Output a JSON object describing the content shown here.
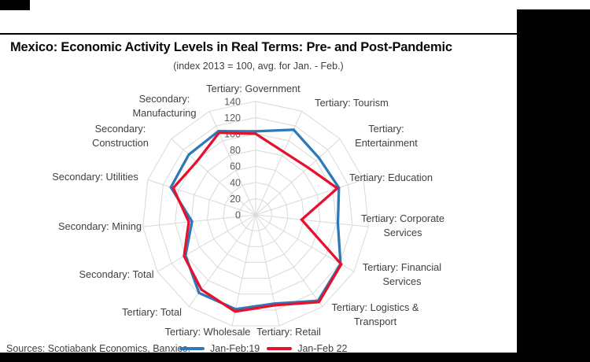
{
  "header": {
    "title": "Mexico: Economic Activity Levels in Real Terms: Pre- and Post-Pandemic",
    "subtitle": "(index 2013 = 100, avg. for Jan. - Feb.)"
  },
  "footer": {
    "sources": "Sources: Scotiabank Economics, Banxico."
  },
  "legend": {
    "items": [
      {
        "label": "Jan-Feb:19",
        "color": "#2E79B9"
      },
      {
        "label": "Jan-Feb 22",
        "color": "#E8112D"
      }
    ]
  },
  "colors": {
    "series_pre": "#2E79B9",
    "series_post": "#E8112D",
    "grid": "#D9D9D9",
    "tick_text": "#595959",
    "label_text": "#404040"
  },
  "chart_data": {
    "type": "radar",
    "title": "Mexico: Economic Activity Levels in Real Terms: Pre- and Post-Pandemic",
    "subtitle": "(index 2013 = 100, avg. for Jan. - Feb.)",
    "axis": {
      "min": 0,
      "max": 140,
      "step": 20,
      "tick_labels": [
        "0",
        "20",
        "40",
        "60",
        "80",
        "100",
        "120",
        "140"
      ]
    },
    "grid": true,
    "legend_position": "bottom",
    "categories": [
      {
        "label": "Tertiary: Government",
        "lines": [
          "Tertiary: Government"
        ]
      },
      {
        "label": "Tertiary: Tourism",
        "lines": [
          "Tertiary: Tourism"
        ]
      },
      {
        "label": "Tertiary: Entertainment",
        "lines": [
          "Tertiary:",
          "Entertainment"
        ]
      },
      {
        "label": "Tertiary: Education",
        "lines": [
          "Tertiary: Education"
        ]
      },
      {
        "label": "Tertiary: Corporate Services",
        "lines": [
          "Tertiary: Corporate",
          "Services"
        ]
      },
      {
        "label": "Tertiary: Financial Services",
        "lines": [
          "Tertiary: Financial",
          "Services"
        ]
      },
      {
        "label": "Tertiary: Logistics & Transport",
        "lines": [
          "Tertiary: Logistics &",
          "Transport"
        ]
      },
      {
        "label": "Tertiary: Retail",
        "lines": [
          "Tertiary: Retail"
        ]
      },
      {
        "label": "Tertiary: Wholesale",
        "lines": [
          "Tertiary: Wholesale"
        ]
      },
      {
        "label": "Tertiary: Total",
        "lines": [
          "Tertiary: Total"
        ]
      },
      {
        "label": "Secondary: Total",
        "lines": [
          "Secondary: Total"
        ]
      },
      {
        "label": "Secondary: Mining",
        "lines": [
          "Secondary: Mining"
        ]
      },
      {
        "label": "Secondary: Utilities",
        "lines": [
          "Secondary: Utilities"
        ]
      },
      {
        "label": "Secondary: Construction",
        "lines": [
          "Secondary:",
          "Construction"
        ]
      },
      {
        "label": "Secondary: Manufacturing",
        "lines": [
          "Secondary:",
          "Manufacturing"
        ]
      }
    ],
    "series": [
      {
        "name": "Jan-Feb:19",
        "color": "#2E79B9",
        "values": [
          103,
          115,
          105,
          108,
          102,
          121,
          131,
          112,
          119,
          119,
          100,
          79,
          110,
          111,
          113
        ]
      },
      {
        "name": "Jan-Feb 22",
        "color": "#E8112D",
        "values": [
          100,
          85,
          87,
          106,
          57,
          122,
          133,
          114,
          122,
          114,
          102,
          83,
          107,
          98,
          111
        ]
      }
    ]
  }
}
